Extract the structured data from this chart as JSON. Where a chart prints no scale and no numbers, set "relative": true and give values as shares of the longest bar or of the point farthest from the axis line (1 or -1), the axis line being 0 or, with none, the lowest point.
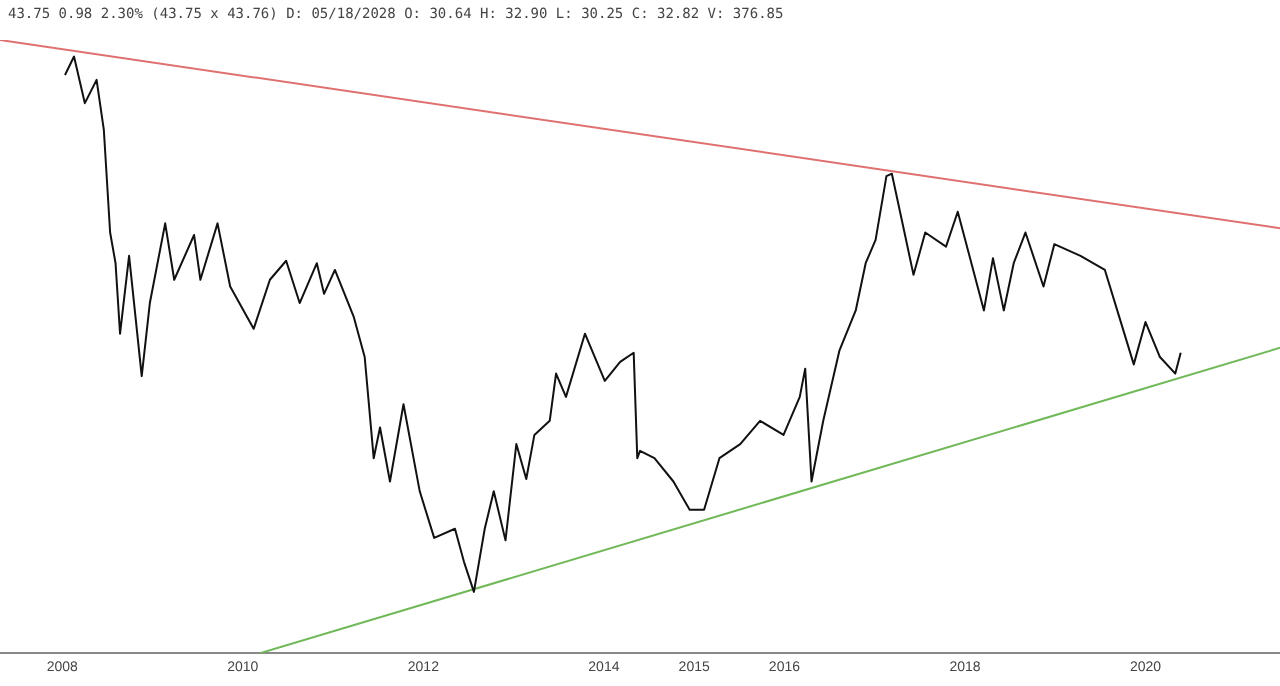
{
  "chart_data": {
    "type": "line",
    "relative": true,
    "annotations": [
      "43.75 0.98 2.30% (43.75 x 43.76) D: 05/18/2028 O: 30.64 H: 32.90 L: 30.25 C: 32.82 V: 376.85"
    ],
    "xlim": [
      2007.31,
      2021.49
    ],
    "xticks": [
      2008,
      2010,
      2012,
      2014,
      2015,
      2016,
      2018,
      2020
    ],
    "grid": false,
    "legend": false,
    "marker": "none",
    "line_style": "solid",
    "series": [
      {
        "color": "#111111",
        "x": [
          2008.03,
          2008.13,
          2008.25,
          2008.38,
          2008.46,
          2008.53,
          2008.59,
          2008.64,
          2008.74,
          2008.88,
          2008.97,
          2009.14,
          2009.24,
          2009.46,
          2009.53,
          2009.72,
          2009.86,
          2010.12,
          2010.3,
          2010.48,
          2010.63,
          2010.82,
          2010.9,
          2011.02,
          2011.23,
          2011.35,
          2011.45,
          2011.52,
          2011.63,
          2011.78,
          2011.96,
          2012.12,
          2012.35,
          2012.45,
          2012.56,
          2012.68,
          2012.78,
          2012.91,
          2013.03,
          2013.14,
          2013.23,
          2013.4,
          2013.47,
          2013.58,
          2013.79,
          2014.01,
          2014.18,
          2014.33,
          2014.37,
          2014.4,
          2014.56,
          2014.77,
          2014.95,
          2015.11,
          2015.28,
          2015.51,
          2015.73,
          2015.99,
          2016.17,
          2016.23,
          2016.3,
          2016.43,
          2016.61,
          2016.79,
          2016.9,
          2017.01,
          2017.13,
          2017.19,
          2017.33,
          2017.43,
          2017.56,
          2017.79,
          2017.92,
          2018.21,
          2018.31,
          2018.43,
          2018.54,
          2018.67,
          2018.87,
          2018.99,
          2019.28,
          2019.55,
          2019.71,
          2019.87,
          2020.0,
          2020.16,
          2020.33,
          2020.39
        ],
        "values": [
          0.943,
          0.973,
          0.897,
          0.935,
          0.854,
          0.686,
          0.636,
          0.521,
          0.648,
          0.452,
          0.571,
          0.701,
          0.609,
          0.682,
          0.609,
          0.701,
          0.598,
          0.529,
          0.609,
          0.64,
          0.571,
          0.636,
          0.586,
          0.625,
          0.548,
          0.483,
          0.318,
          0.368,
          0.28,
          0.406,
          0.264,
          0.188,
          0.203,
          0.149,
          0.1,
          0.203,
          0.264,
          0.184,
          0.341,
          0.284,
          0.356,
          0.379,
          0.456,
          0.418,
          0.521,
          0.444,
          0.475,
          0.49,
          0.318,
          0.33,
          0.318,
          0.28,
          0.234,
          0.234,
          0.318,
          0.341,
          0.379,
          0.356,
          0.418,
          0.464,
          0.28,
          0.379,
          0.494,
          0.559,
          0.636,
          0.674,
          0.778,
          0.782,
          0.686,
          0.617,
          0.686,
          0.663,
          0.72,
          0.559,
          0.644,
          0.559,
          0.636,
          0.686,
          0.598,
          0.667,
          0.648,
          0.625,
          0.548,
          0.471,
          0.54,
          0.483,
          0.456,
          0.49
        ]
      },
      {
        "color": "#e07070",
        "x": [
          2007.31,
          2021.49
        ],
        "values": [
          1,
          0.693
        ]
      },
      {
        "color": "#70b858",
        "x": [
          2010.19,
          2021.49
        ],
        "values": [
          0,
          0.498
        ]
      }
    ]
  }
}
